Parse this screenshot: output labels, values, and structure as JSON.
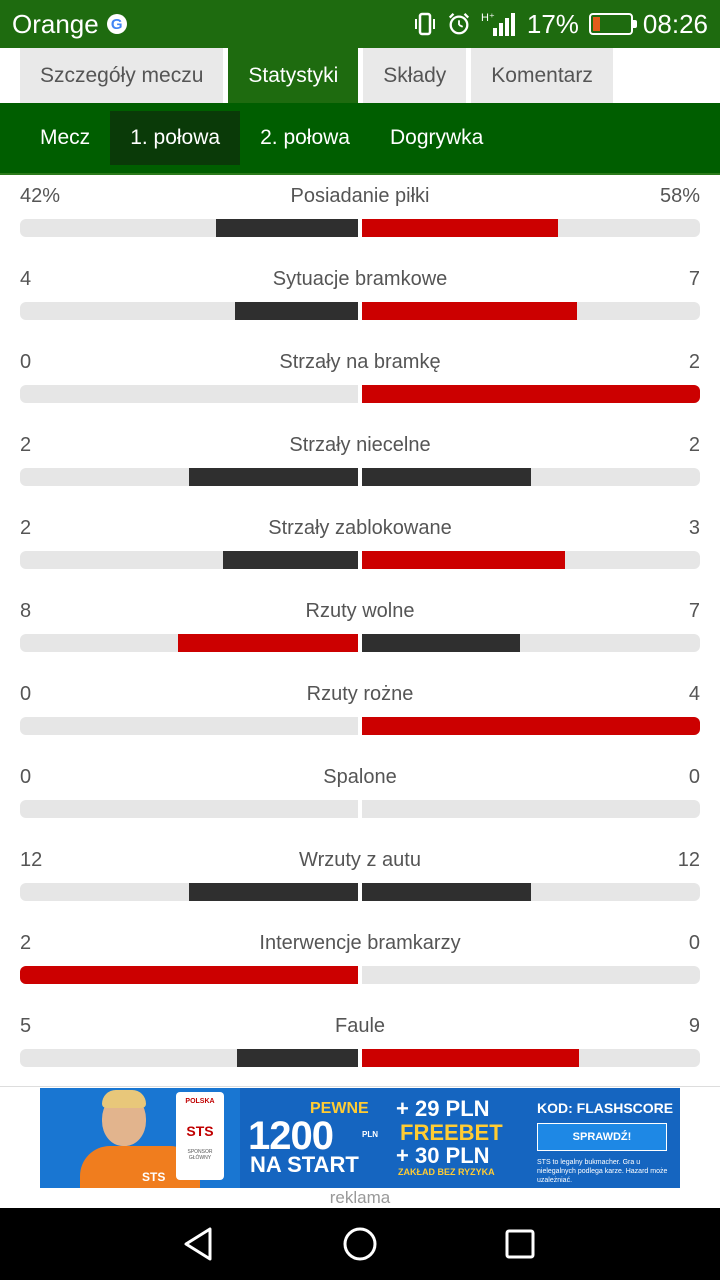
{
  "status_bar": {
    "carrier": "Orange",
    "g_icon": "G",
    "signal_badge": "H⁺",
    "battery_percent": "17%",
    "battery_level": 0.17,
    "time": "08:26",
    "icons": [
      "vibrate-icon",
      "alarm-icon",
      "signal-icon",
      "battery-icon"
    ]
  },
  "tabs": [
    {
      "label": "Szczegóły meczu",
      "active": false
    },
    {
      "label": "Statystyki",
      "active": true
    },
    {
      "label": "Składy",
      "active": false
    },
    {
      "label": "Komentarz",
      "active": false
    }
  ],
  "subtabs": [
    {
      "label": "Mecz",
      "active": false
    },
    {
      "label": "1. połowa",
      "active": true
    },
    {
      "label": "2. połowa",
      "active": false
    },
    {
      "label": "Dogrywka",
      "active": false
    }
  ],
  "colors": {
    "header_green": "#1e6b0f",
    "subtab_green": "#005e00",
    "bar_dark": "#2f2f2f",
    "bar_red": "#cc0000",
    "bar_track": "#e6e6e6"
  },
  "stats": [
    {
      "label": "Posiadanie piłki",
      "home": "42%",
      "away": "58%",
      "home_val": 42,
      "away_val": 58
    },
    {
      "label": "Sytuacje bramkowe",
      "home": "4",
      "away": "7",
      "home_val": 4,
      "away_val": 7
    },
    {
      "label": "Strzały na bramkę",
      "home": "0",
      "away": "2",
      "home_val": 0,
      "away_val": 2
    },
    {
      "label": "Strzały niecelne",
      "home": "2",
      "away": "2",
      "home_val": 2,
      "away_val": 2
    },
    {
      "label": "Strzały zablokowane",
      "home": "2",
      "away": "3",
      "home_val": 2,
      "away_val": 3
    },
    {
      "label": "Rzuty wolne",
      "home": "8",
      "away": "7",
      "home_val": 8,
      "away_val": 7
    },
    {
      "label": "Rzuty rożne",
      "home": "0",
      "away": "4",
      "home_val": 0,
      "away_val": 4
    },
    {
      "label": "Spalone",
      "home": "0",
      "away": "0",
      "home_val": 0,
      "away_val": 0
    },
    {
      "label": "Wrzuty z autu",
      "home": "12",
      "away": "12",
      "home_val": 12,
      "away_val": 12
    },
    {
      "label": "Interwencje bramkarzy",
      "home": "2",
      "away": "0",
      "home_val": 2,
      "away_val": 0
    },
    {
      "label": "Faule",
      "home": "5",
      "away": "9",
      "home_val": 5,
      "away_val": 9
    }
  ],
  "ad": {
    "badge_top": "POLSKA",
    "badge_brand": "STS",
    "badge_small": "SPONSOR GŁÓWNY",
    "shirt_logo": "STS",
    "pewne": "PEWNE",
    "amount": "1200",
    "amount_currency": "PLN",
    "na_start": "NA START",
    "plus29": "+ 29 PLN",
    "freebet": "FREEBET",
    "plus30": "+ 30 PLN",
    "zaklad": "ZAKŁAD BEZ RYZYKA",
    "kod": "KOD: FLASHSCORE",
    "button": "SPRAWDŹ!",
    "legal": "STS to legalny bukmacher. Gra u nielegalnych podlega karze. Hazard może uzależniać."
  },
  "ad_caption": "reklama",
  "nav": [
    "back-icon",
    "home-icon",
    "recents-icon"
  ]
}
